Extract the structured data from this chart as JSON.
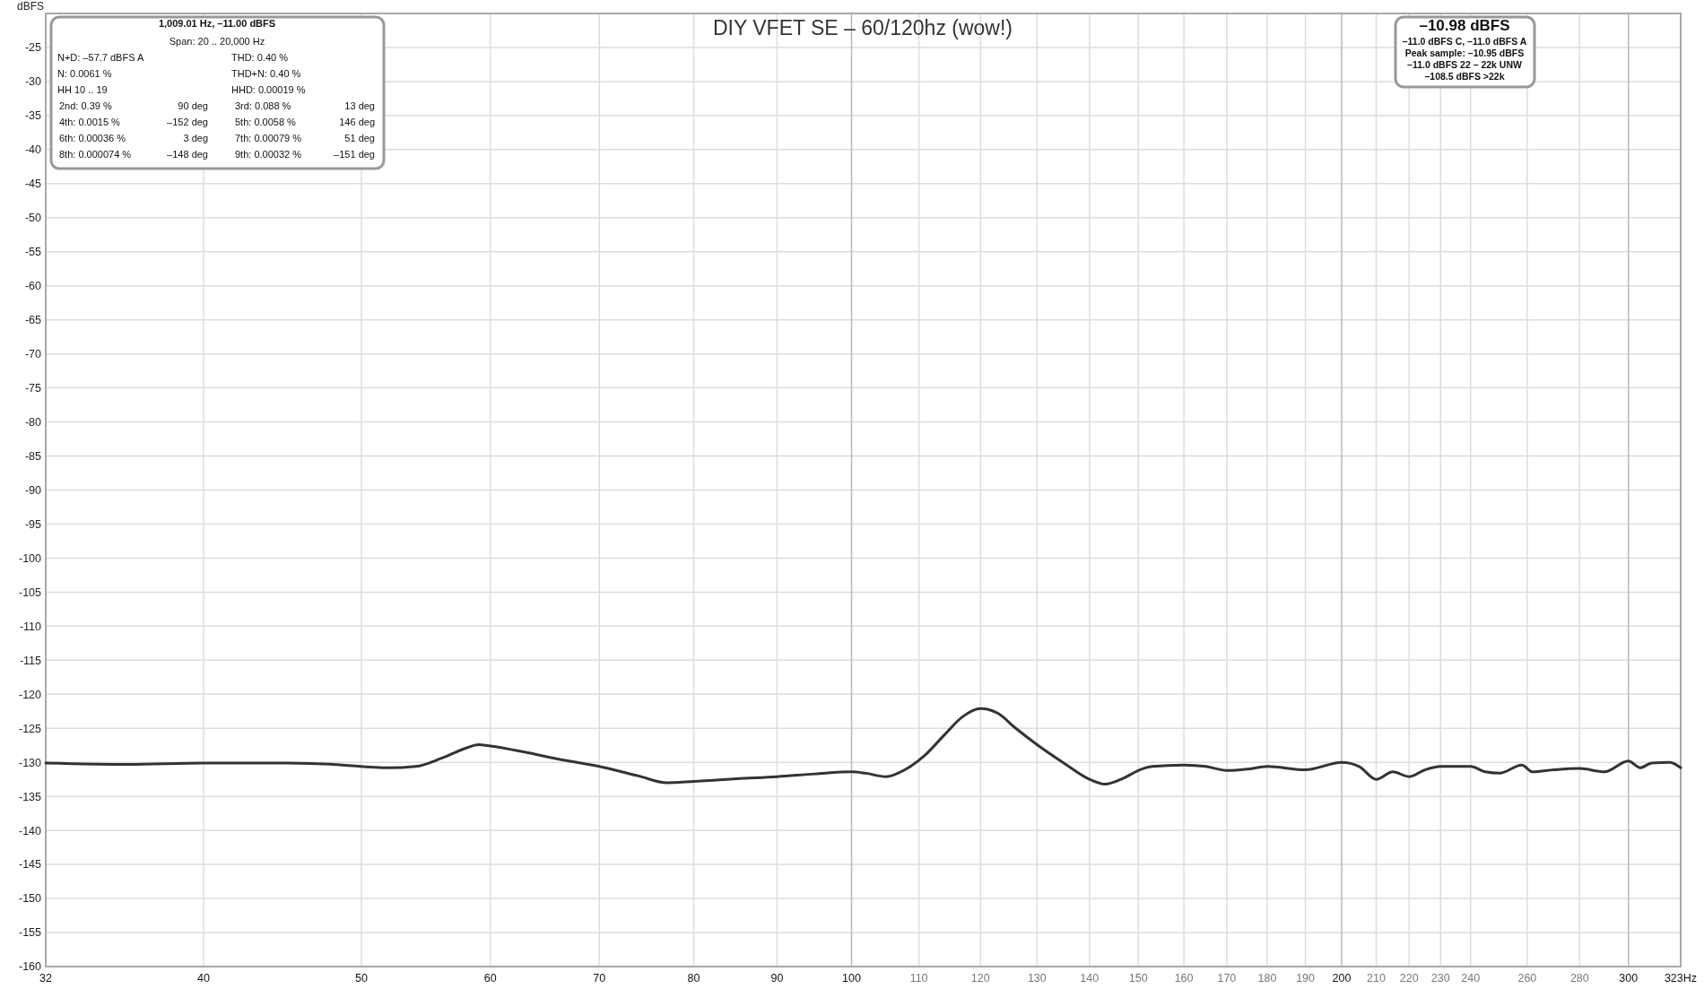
{
  "chart_data": {
    "type": "line",
    "title": "DIY VFET SE – 60/120hz (wow!)",
    "ylabel": "dBFS",
    "x": [
      32,
      36,
      40,
      45,
      48,
      52,
      54,
      56,
      58,
      59,
      60,
      63,
      66,
      70,
      74,
      77,
      80,
      85,
      90,
      95,
      100,
      102,
      105,
      108,
      111,
      114,
      117,
      120,
      123,
      126,
      130,
      135,
      140,
      143,
      147,
      150,
      153,
      160,
      165,
      170,
      175,
      180,
      190,
      200,
      205,
      210,
      215,
      220,
      225,
      230,
      240,
      245,
      250,
      258,
      262,
      270,
      280,
      290,
      300,
      305,
      310,
      318,
      323
    ],
    "series": [
      {
        "color": "#333333",
        "values": [
          -130.1,
          -130.3,
          -130.1,
          -130.1,
          -130.3,
          -130.8,
          -130.6,
          -129.4,
          -127.9,
          -127.4,
          -127.6,
          -128.5,
          -129.5,
          -130.6,
          -132.0,
          -133.0,
          -132.8,
          -132.4,
          -132.1,
          -131.7,
          -131.4,
          -131.6,
          -132.1,
          -131.0,
          -128.9,
          -126.0,
          -123.3,
          -122.1,
          -122.8,
          -124.9,
          -127.4,
          -130.1,
          -132.5,
          -133.2,
          -132.3,
          -131.2,
          -130.6,
          -130.4,
          -130.6,
          -131.2,
          -131.0,
          -130.6,
          -131.1,
          -130.0,
          -130.6,
          -132.5,
          -131.4,
          -132.1,
          -131.1,
          -130.6,
          -130.6,
          -131.4,
          -131.6,
          -130.4,
          -131.4,
          -131.1,
          -130.9,
          -131.4,
          -129.8,
          -130.8,
          -130.1,
          -130.0,
          -130.8
        ]
      }
    ],
    "xlim": [
      32,
      323
    ],
    "ylim": [
      -160,
      -20
    ],
    "log": "x",
    "grid": true,
    "line_style": "solid",
    "marker": "none",
    "xticks": [
      32,
      40,
      50,
      60,
      70,
      80,
      90,
      100,
      110,
      120,
      130,
      140,
      150,
      160,
      170,
      180,
      190,
      200,
      210,
      220,
      230,
      240,
      260,
      280,
      300,
      {
        "value": 323,
        "label": "323Hz"
      }
    ],
    "yticks": [
      -160,
      -155,
      -150,
      -145,
      -140,
      -135,
      -130,
      -125,
      -120,
      -115,
      -110,
      -105,
      -100,
      -95,
      -90,
      -85,
      -80,
      -75,
      -70,
      -65,
      -60,
      -55,
      -50,
      -45,
      -40,
      -35,
      -30,
      -25
    ],
    "annotations": [
      "1,009.01 Hz, –11.00 dBFS",
      "Span: 20 .. 20,000 Hz",
      "N+D: –57.7 dBFS A",
      "THD: 0.40 %",
      "N: 0.0061 %",
      "THD+N: 0.40 %",
      "HH 10 .. 19",
      "HHD: 0.00019 %",
      "2nd: 0.39 %",
      "90 deg",
      "3rd: 0.088 %",
      "13 deg",
      "4th: 0.0015 %",
      "–152 deg",
      "5th: 0.0058 %",
      "146 deg",
      "6th: 0.00036 %",
      "3 deg",
      "7th: 0.00079 %",
      "51 deg",
      "8th: 0.000074 %",
      "–148 deg",
      "9th: 0.00032 %",
      "–151 deg",
      "–10.98 dBFS",
      "–11.0 dBFS C, –11.0 dBFS A",
      "Peak sample: –10.95 dBFS",
      "–11.0 dBFS 22 – 22k UNW",
      "–108.5 dBFS >22k"
    ]
  }
}
